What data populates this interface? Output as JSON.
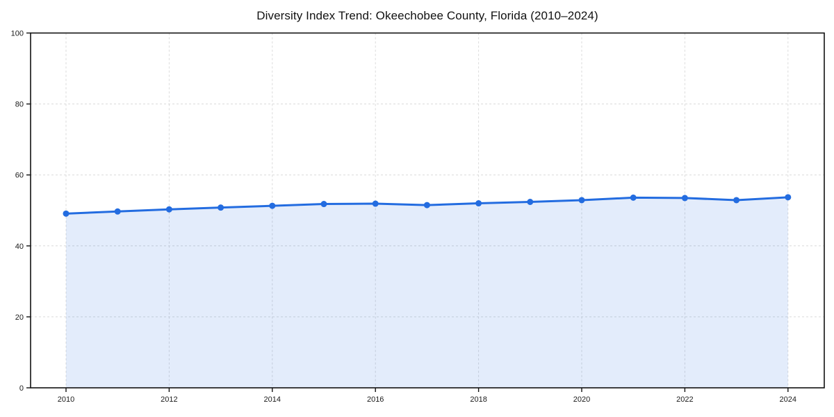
{
  "figure": {
    "background": "#ffffff"
  },
  "chart_data": {
    "type": "area",
    "title": "Diversity Index Trend: Okeechobee County, Florida (2010–2024)",
    "x": [
      2010,
      2011,
      2012,
      2013,
      2014,
      2015,
      2016,
      2017,
      2018,
      2019,
      2020,
      2021,
      2022,
      2023,
      2024
    ],
    "values": [
      49.1,
      49.7,
      50.3,
      50.8,
      51.3,
      51.8,
      51.9,
      51.5,
      52.0,
      52.4,
      52.9,
      53.6,
      53.5,
      52.9,
      53.7
    ],
    "xlabel": "",
    "ylabel": "",
    "ylim": [
      0,
      100
    ],
    "yticks": [
      0,
      20,
      40,
      60,
      80,
      100
    ],
    "xticks": [
      2010,
      2012,
      2014,
      2016,
      2018,
      2020,
      2022,
      2024
    ],
    "grid": true,
    "grid_style": "dashed",
    "legend_position": "none",
    "marker": "circle",
    "colors": {
      "line": "#236ce0",
      "marker": "#236ce0",
      "fill": "rgba(35,108,224,0.13)",
      "grid": "#dadada",
      "axis": "#111111",
      "tick_label": "#1a1a1a",
      "title": "#111111",
      "background": "#ffffff"
    }
  }
}
